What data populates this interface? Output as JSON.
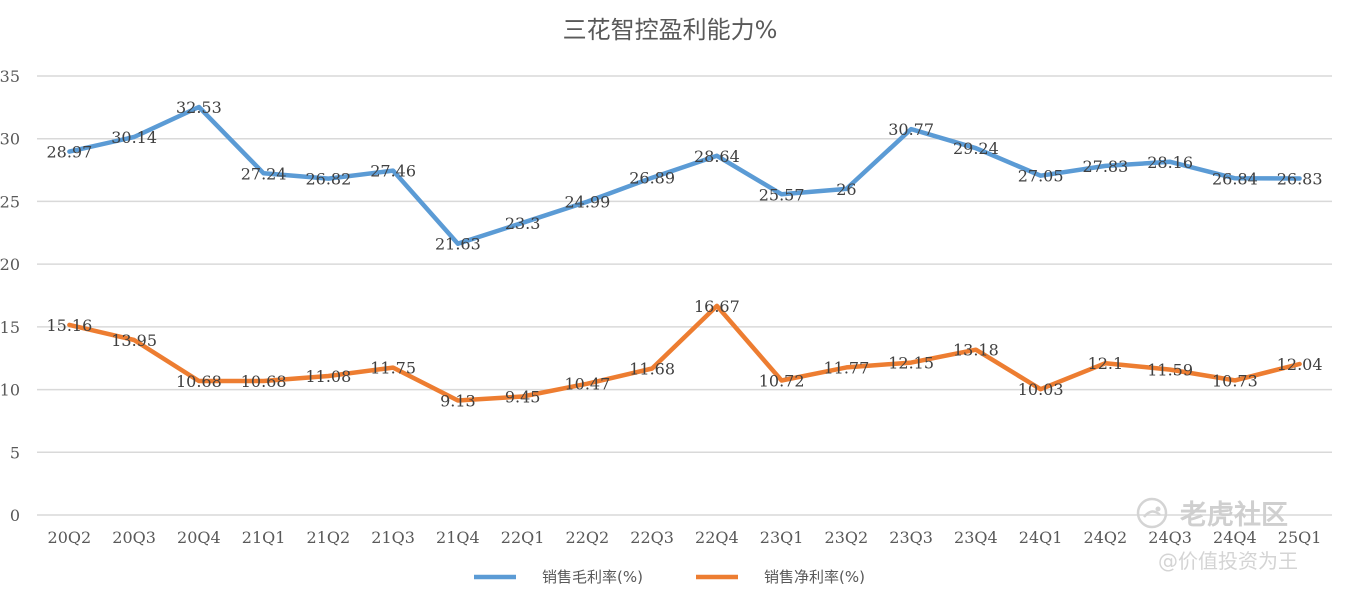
{
  "chart_data": {
    "type": "line",
    "title": "三花智控盈利能力%",
    "categories": [
      "20Q2",
      "20Q3",
      "20Q4",
      "21Q1",
      "21Q2",
      "21Q3",
      "21Q4",
      "22Q1",
      "22Q2",
      "22Q3",
      "22Q4",
      "23Q1",
      "23Q2",
      "23Q3",
      "23Q4",
      "24Q1",
      "24Q2",
      "24Q3",
      "24Q4",
      "25Q1"
    ],
    "series": [
      {
        "name": "销售毛利率(%)",
        "color": "#5B9BD5",
        "values": [
          28.97,
          30.14,
          32.53,
          27.24,
          26.82,
          27.46,
          21.63,
          23.3,
          24.99,
          26.89,
          28.64,
          25.57,
          26,
          30.77,
          29.24,
          27.05,
          27.83,
          28.16,
          26.84,
          26.83
        ],
        "labels": [
          "28.97",
          "30.14",
          "32.53",
          "27.24",
          "26.82",
          "27.46",
          "21.63",
          "23.3",
          "24.99",
          "26.89",
          "28.64",
          "25.57",
          "26",
          "30.77",
          "29.24",
          "27.05",
          "27.83",
          "28.16",
          "26.84",
          "26.83"
        ]
      },
      {
        "name": "销售净利率(%)",
        "color": "#ED7D31",
        "values": [
          15.16,
          13.95,
          10.68,
          10.68,
          11.08,
          11.75,
          9.13,
          9.45,
          10.47,
          11.68,
          16.67,
          10.72,
          11.77,
          12.15,
          13.18,
          10.03,
          12.1,
          11.59,
          10.73,
          12.04
        ],
        "labels": [
          "15.16",
          "13.95",
          "10.68",
          "10.68",
          "11.08",
          "11.75",
          "9.13",
          "9.45",
          "10.47",
          "11.68",
          "16.67",
          "10.72",
          "11.77",
          "12.15",
          "13.18",
          "10.03",
          "12.1",
          "11.59",
          "10.73",
          "12.04"
        ]
      }
    ],
    "ylim": [
      0,
      35
    ],
    "yticks": [
      "0",
      "5",
      "10",
      "15",
      "20",
      "25",
      "30",
      "35"
    ],
    "grid": true,
    "legend": "bottom"
  },
  "watermark": {
    "main": "老虎社区",
    "sub": "@价值投资为王",
    "icon": "tiger-logo-icon"
  }
}
